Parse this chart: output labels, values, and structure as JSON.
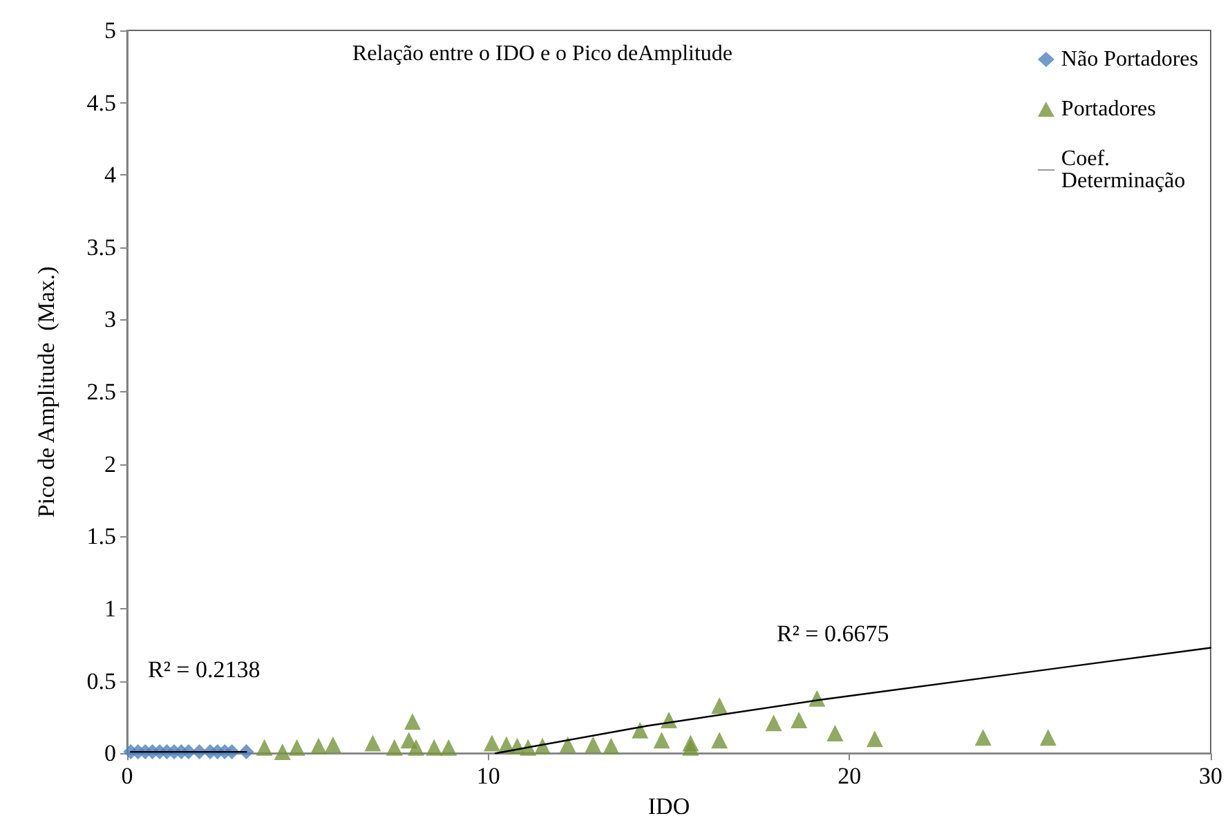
{
  "chart_data": {
    "type": "scatter",
    "title": "Relação entre o IDO e o Pico deAmplitude",
    "xlabel": "IDO",
    "ylabel": "Pico de Amplitude  (Max.)",
    "xlim": [
      0,
      30
    ],
    "xticks": [
      0,
      10,
      20,
      30
    ],
    "ylim": [
      0,
      5
    ],
    "yticks": [
      0,
      0.5,
      1,
      1.5,
      2,
      2.5,
      3,
      3.5,
      4,
      4.5,
      5
    ],
    "grid": false,
    "legend": "top right",
    "series": [
      {
        "name": "Não Portadores",
        "color": "#4f81bd",
        "marker": "diamond",
        "x": [
          0.1,
          0.3,
          0.5,
          0.7,
          0.9,
          1.1,
          1.3,
          1.5,
          1.7,
          2.0,
          2.3,
          2.5,
          2.7,
          2.9,
          3.3
        ],
        "values": [
          0.01,
          0.01,
          0.01,
          0.01,
          0.01,
          0.01,
          0.01,
          0.01,
          0.01,
          0.01,
          0.01,
          0.01,
          0.01,
          0.01,
          0.01
        ]
      },
      {
        "name": "Portadores",
        "color": "#77933c",
        "marker": "triangle",
        "x": [
          3.8,
          4.3,
          4.7,
          5.3,
          5.7,
          6.8,
          7.4,
          7.8,
          7.9,
          8.0,
          8.5,
          8.9,
          10.1,
          10.5,
          10.8,
          11.1,
          11.5,
          12.2,
          12.9,
          13.4,
          14.2,
          14.8,
          15.0,
          15.6,
          15.6,
          16.4,
          16.4,
          17.9,
          18.6,
          19.1,
          19.6,
          20.7,
          23.7,
          25.5
        ],
        "values": [
          0.04,
          0.01,
          0.04,
          0.05,
          0.06,
          0.07,
          0.04,
          0.09,
          0.22,
          0.04,
          0.04,
          0.04,
          0.07,
          0.06,
          0.05,
          0.04,
          0.05,
          0.06,
          0.06,
          0.05,
          0.16,
          0.09,
          0.23,
          0.07,
          0.04,
          0.09,
          0.33,
          0.21,
          0.23,
          0.38,
          0.14,
          0.1,
          0.11,
          0.11
        ]
      },
      {
        "name": "Coef. Determinação",
        "type": "line",
        "color": "#000000",
        "marker": "none",
        "line_style": "solid",
        "x": [
          0.1,
          3.3
        ],
        "values": [
          0.01,
          0.01
        ]
      },
      {
        "type": "line",
        "color": "#000000",
        "marker": "none",
        "line_style": "solid",
        "x": [
          10.2,
          14.4,
          19.2,
          30
        ],
        "values": [
          0,
          0.19,
          0.37,
          0.73
        ]
      }
    ],
    "annotations": [
      "R² = 0.2138",
      "R² = 0.6675"
    ]
  }
}
